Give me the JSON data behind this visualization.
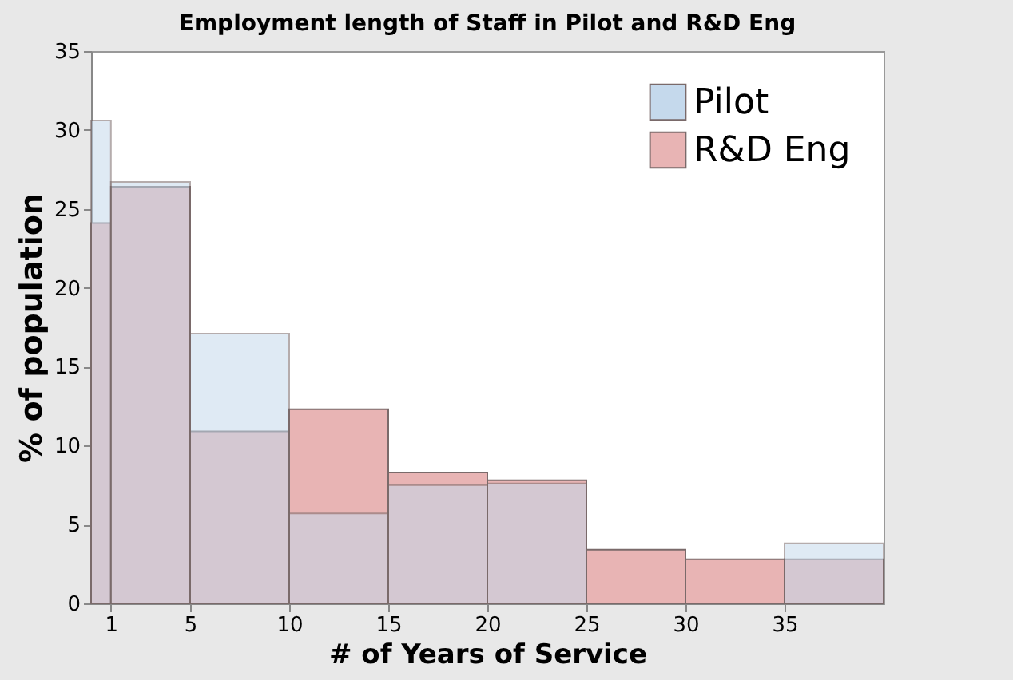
{
  "chart_data": {
    "type": "histogram",
    "title": "Employment length of Staff in Pilot and R&D Eng",
    "xlabel": "# of Years of Service",
    "ylabel": "% of population",
    "bins": [
      0,
      1,
      5,
      10,
      15,
      20,
      25,
      30,
      35,
      40
    ],
    "series": [
      {
        "name": "R&D Eng",
        "color": "#e8b4b4",
        "values": [
          24.1,
          26.4,
          10.9,
          12.3,
          8.3,
          7.8,
          3.4,
          2.8,
          2.8
        ]
      },
      {
        "name": "Pilot",
        "color": "#c5d9ec",
        "values": [
          30.6,
          26.7,
          17.1,
          5.7,
          7.5,
          7.6,
          null,
          null,
          3.8
        ]
      }
    ],
    "xlim": [
      0,
      40
    ],
    "xticks": [
      1,
      5,
      10,
      15,
      20,
      25,
      30,
      35
    ],
    "ylim": [
      0,
      35
    ],
    "yticks": [
      0,
      5,
      10,
      15,
      20,
      25,
      30,
      35
    ],
    "grid": false,
    "legend": "top right"
  }
}
